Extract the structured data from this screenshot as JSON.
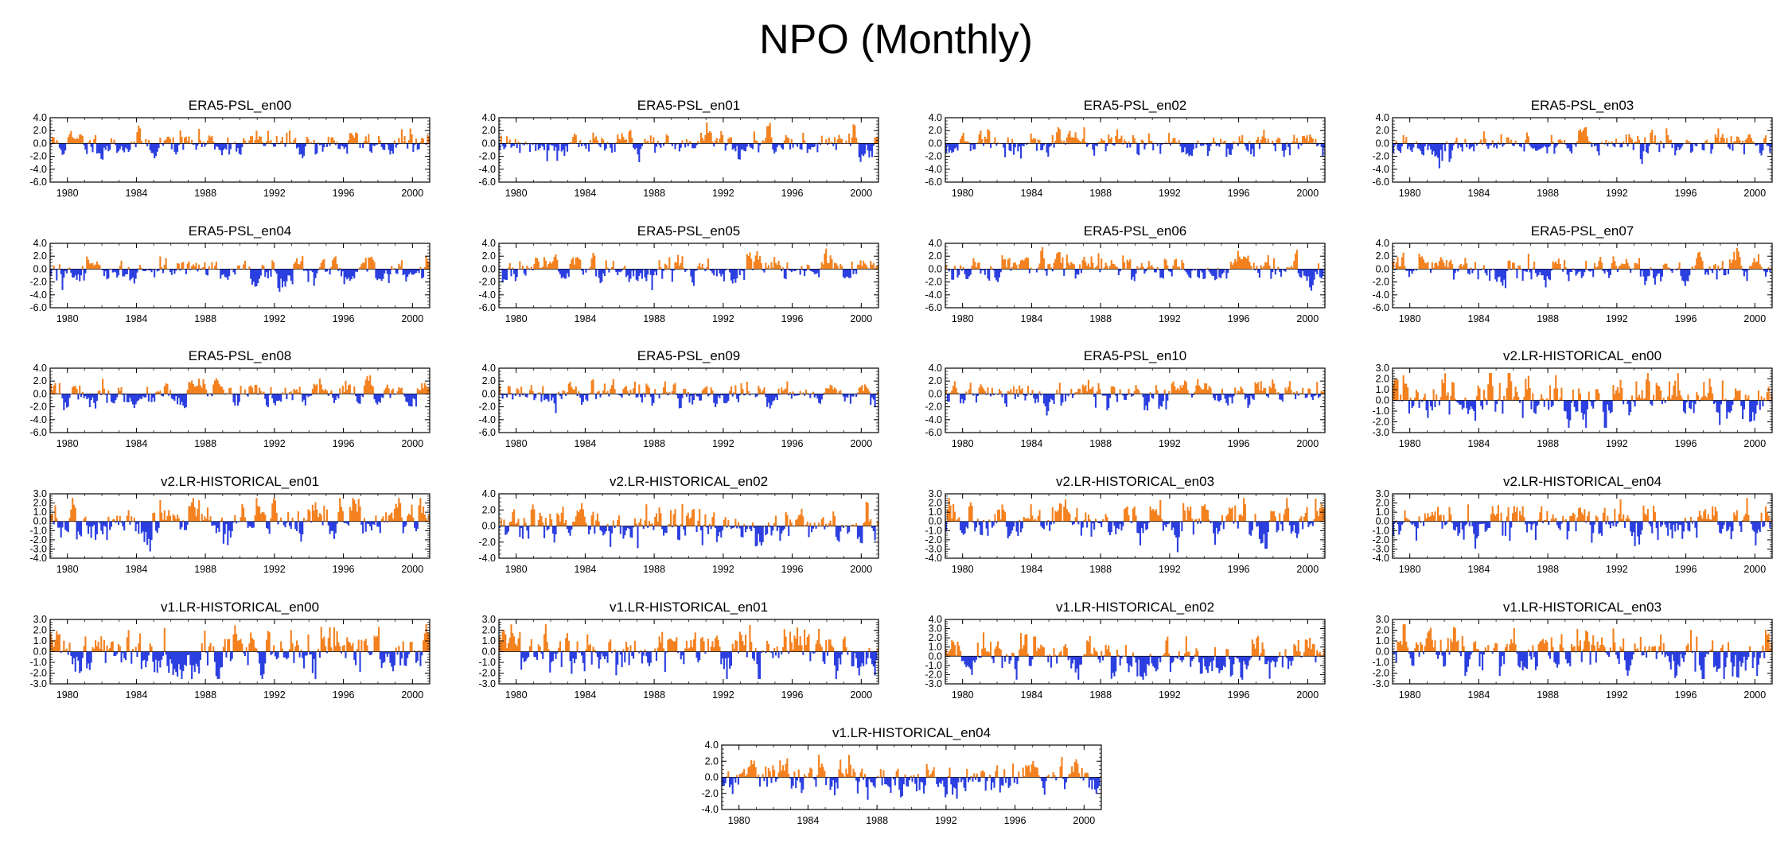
{
  "title": "NPO (Monthly)",
  "colors": {
    "positive": "#f4811f",
    "negative": "#2b3fe0",
    "axis": "#000000"
  },
  "x_ticks": [
    "1980",
    "1984",
    "1988",
    "1992",
    "1996",
    "2000"
  ],
  "chart_data": [
    {
      "type": "bar",
      "title": "ERA5-PSL_en00",
      "xlim": [
        1979,
        2001
      ],
      "ylim": [
        -6,
        4
      ],
      "y_ticks": [
        "4.0",
        "2.0",
        "0.0",
        "-2.0",
        "-4.0",
        "-6.0"
      ],
      "seed": 11,
      "sigma": 0.9,
      "pos_scale": 1.0,
      "neg_scale": 1.0
    },
    {
      "type": "bar",
      "title": "ERA5-PSL_en01",
      "xlim": [
        1979,
        2001
      ],
      "ylim": [
        -6,
        4
      ],
      "y_ticks": [
        "4.0",
        "2.0",
        "0.0",
        "-2.0",
        "-4.0",
        "-6.0"
      ],
      "seed": 12,
      "sigma": 0.9,
      "pos_scale": 1.0,
      "neg_scale": 1.0
    },
    {
      "type": "bar",
      "title": "ERA5-PSL_en02",
      "xlim": [
        1979,
        2001
      ],
      "ylim": [
        -6,
        4
      ],
      "y_ticks": [
        "4.0",
        "2.0",
        "0.0",
        "-2.0",
        "-4.0",
        "-6.0"
      ],
      "seed": 13,
      "sigma": 0.9,
      "pos_scale": 1.0,
      "neg_scale": 1.0
    },
    {
      "type": "bar",
      "title": "ERA5-PSL_en03",
      "xlim": [
        1979,
        2001
      ],
      "ylim": [
        -6,
        4
      ],
      "y_ticks": [
        "4.0",
        "2.0",
        "0.0",
        "-2.0",
        "-4.0",
        "-6.0"
      ],
      "seed": 14,
      "sigma": 0.9,
      "pos_scale": 1.0,
      "neg_scale": 1.0
    },
    {
      "type": "bar",
      "title": "ERA5-PSL_en04",
      "xlim": [
        1979,
        2001
      ],
      "ylim": [
        -6,
        4
      ],
      "y_ticks": [
        "4.0",
        "2.0",
        "0.0",
        "-2.0",
        "-4.0",
        "-6.0"
      ],
      "seed": 15,
      "sigma": 0.9,
      "pos_scale": 1.0,
      "neg_scale": 1.0
    },
    {
      "type": "bar",
      "title": "ERA5-PSL_en05",
      "xlim": [
        1979,
        2001
      ],
      "ylim": [
        -6,
        4
      ],
      "y_ticks": [
        "4.0",
        "2.0",
        "0.0",
        "-2.0",
        "-4.0",
        "-6.0"
      ],
      "seed": 16,
      "sigma": 0.9,
      "pos_scale": 1.0,
      "neg_scale": 1.0
    },
    {
      "type": "bar",
      "title": "ERA5-PSL_en06",
      "xlim": [
        1979,
        2001
      ],
      "ylim": [
        -6,
        4
      ],
      "y_ticks": [
        "4.0",
        "2.0",
        "0.0",
        "-2.0",
        "-4.0",
        "-6.0"
      ],
      "seed": 17,
      "sigma": 0.9,
      "pos_scale": 1.0,
      "neg_scale": 1.0
    },
    {
      "type": "bar",
      "title": "ERA5-PSL_en07",
      "xlim": [
        1979,
        2001
      ],
      "ylim": [
        -6,
        4
      ],
      "y_ticks": [
        "4.0",
        "2.0",
        "0.0",
        "-2.0",
        "-4.0",
        "-6.0"
      ],
      "seed": 18,
      "sigma": 0.9,
      "pos_scale": 1.0,
      "neg_scale": 1.0
    },
    {
      "type": "bar",
      "title": "ERA5-PSL_en08",
      "xlim": [
        1979,
        2001
      ],
      "ylim": [
        -6,
        4
      ],
      "y_ticks": [
        "4.0",
        "2.0",
        "0.0",
        "-2.0",
        "-4.0",
        "-6.0"
      ],
      "seed": 19,
      "sigma": 0.9,
      "pos_scale": 1.0,
      "neg_scale": 1.0
    },
    {
      "type": "bar",
      "title": "ERA5-PSL_en09",
      "xlim": [
        1979,
        2001
      ],
      "ylim": [
        -6,
        4
      ],
      "y_ticks": [
        "4.0",
        "2.0",
        "0.0",
        "-2.0",
        "-4.0",
        "-6.0"
      ],
      "seed": 20,
      "sigma": 0.9,
      "pos_scale": 1.0,
      "neg_scale": 1.0
    },
    {
      "type": "bar",
      "title": "ERA5-PSL_en10",
      "xlim": [
        1979,
        2001
      ],
      "ylim": [
        -6,
        4
      ],
      "y_ticks": [
        "4.0",
        "2.0",
        "0.0",
        "-2.0",
        "-4.0",
        "-6.0"
      ],
      "seed": 21,
      "sigma": 0.9,
      "pos_scale": 1.0,
      "neg_scale": 1.0
    },
    {
      "type": "bar",
      "title": "v2.LR-HISTORICAL_en00",
      "xlim": [
        1979,
        2001
      ],
      "ylim": [
        -3,
        3
      ],
      "y_ticks": [
        "3.0",
        "2.0",
        "1.0",
        "0.0",
        "-1.0",
        "-2.0",
        "-3.0"
      ],
      "seed": 31,
      "sigma": 1.0,
      "pos_scale": 1.1,
      "neg_scale": 1.0
    },
    {
      "type": "bar",
      "title": "v2.LR-HISTORICAL_en01",
      "xlim": [
        1979,
        2001
      ],
      "ylim": [
        -4,
        3
      ],
      "y_ticks": [
        "3.0",
        "2.0",
        "1.0",
        "0.0",
        "-1.0",
        "-2.0",
        "-3.0",
        "-4.0"
      ],
      "seed": 32,
      "sigma": 1.0,
      "pos_scale": 1.0,
      "neg_scale": 1.0
    },
    {
      "type": "bar",
      "title": "v2.LR-HISTORICAL_en02",
      "xlim": [
        1979,
        2001
      ],
      "ylim": [
        -4,
        4
      ],
      "y_ticks": [
        "4.0",
        "2.0",
        "0.0",
        "-2.0",
        "-4.0"
      ],
      "seed": 33,
      "sigma": 1.0,
      "pos_scale": 1.0,
      "neg_scale": 1.0
    },
    {
      "type": "bar",
      "title": "v2.LR-HISTORICAL_en03",
      "xlim": [
        1979,
        2001
      ],
      "ylim": [
        -4,
        3
      ],
      "y_ticks": [
        "3.0",
        "2.0",
        "1.0",
        "0.0",
        "-1.0",
        "-2.0",
        "-3.0",
        "-4.0"
      ],
      "seed": 34,
      "sigma": 1.0,
      "pos_scale": 1.0,
      "neg_scale": 1.0
    },
    {
      "type": "bar",
      "title": "v2.LR-HISTORICAL_en04",
      "xlim": [
        1979,
        2001
      ],
      "ylim": [
        -4,
        3
      ],
      "y_ticks": [
        "3.0",
        "2.0",
        "1.0",
        "0.0",
        "-1.0",
        "-2.0",
        "-3.0",
        "-4.0"
      ],
      "seed": 35,
      "sigma": 1.0,
      "pos_scale": 1.0,
      "neg_scale": 1.0
    },
    {
      "type": "bar",
      "title": "v1.LR-HISTORICAL_en00",
      "xlim": [
        1979,
        2001
      ],
      "ylim": [
        -3,
        3
      ],
      "y_ticks": [
        "3.0",
        "2.0",
        "1.0",
        "0.0",
        "-1.0",
        "-2.0",
        "-3.0"
      ],
      "seed": 41,
      "sigma": 1.0,
      "pos_scale": 1.0,
      "neg_scale": 1.0
    },
    {
      "type": "bar",
      "title": "v1.LR-HISTORICAL_en01",
      "xlim": [
        1979,
        2001
      ],
      "ylim": [
        -3,
        3
      ],
      "y_ticks": [
        "3.0",
        "2.0",
        "1.0",
        "0.0",
        "-1.0",
        "-2.0",
        "-3.0"
      ],
      "seed": 42,
      "sigma": 1.0,
      "pos_scale": 1.0,
      "neg_scale": 1.0
    },
    {
      "type": "bar",
      "title": "v1.LR-HISTORICAL_en02",
      "xlim": [
        1979,
        2001
      ],
      "ylim": [
        -3,
        4
      ],
      "y_ticks": [
        "4.0",
        "3.0",
        "2.0",
        "1.0",
        "0.0",
        "-1.0",
        "-2.0",
        "-3.0"
      ],
      "seed": 43,
      "sigma": 1.0,
      "pos_scale": 1.0,
      "neg_scale": 1.0
    },
    {
      "type": "bar",
      "title": "v1.LR-HISTORICAL_en03",
      "xlim": [
        1979,
        2001
      ],
      "ylim": [
        -3,
        3
      ],
      "y_ticks": [
        "3.0",
        "2.0",
        "1.0",
        "0.0",
        "-1.0",
        "-2.0",
        "-3.0"
      ],
      "seed": 44,
      "sigma": 1.0,
      "pos_scale": 1.0,
      "neg_scale": 1.0
    },
    {
      "type": "bar",
      "title": "v1.LR-HISTORICAL_en04",
      "xlim": [
        1979,
        2001
      ],
      "ylim": [
        -4,
        4
      ],
      "y_ticks": [
        "4.0",
        "2.0",
        "0.0",
        "-2.0",
        "-4.0"
      ],
      "seed": 45,
      "sigma": 1.0,
      "pos_scale": 1.0,
      "neg_scale": 1.0
    }
  ]
}
